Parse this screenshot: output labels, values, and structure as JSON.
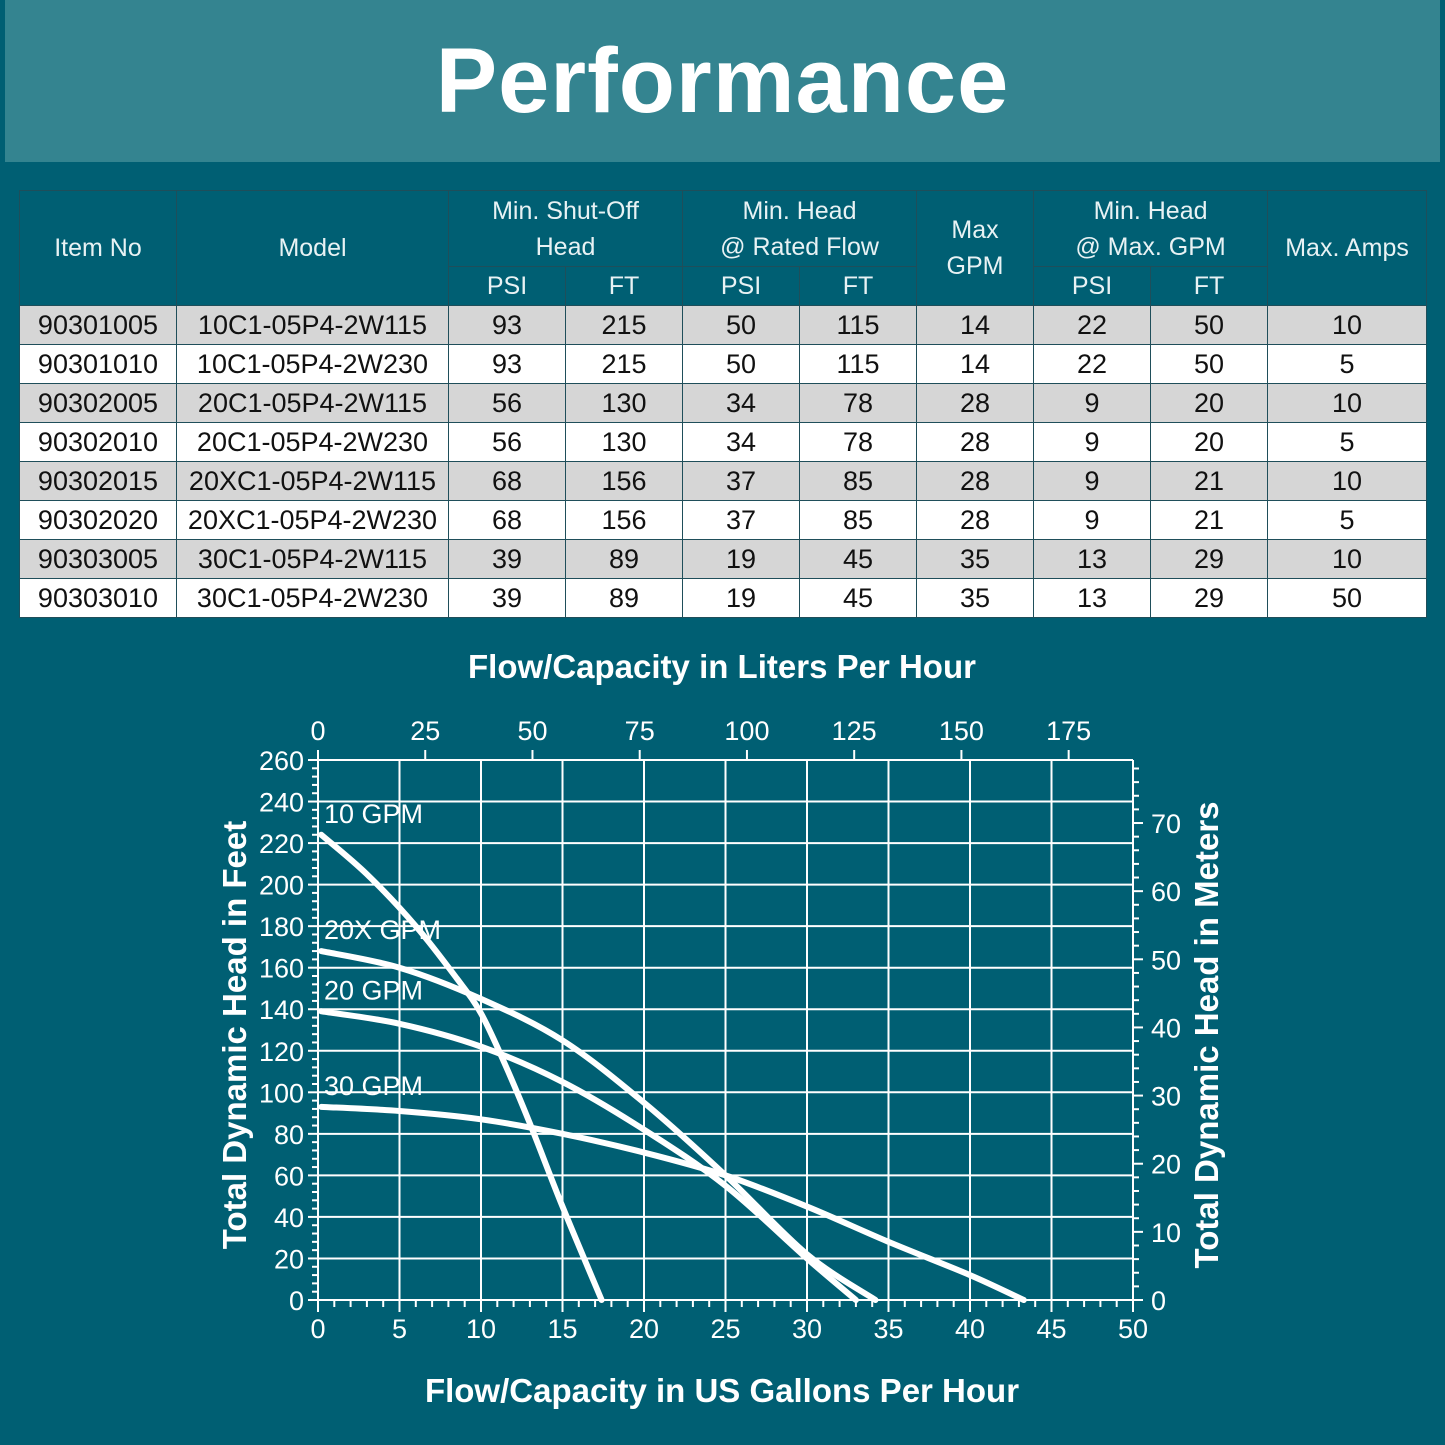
{
  "page": {
    "title": "Performance"
  },
  "table": {
    "headers": {
      "item_no": "Item No",
      "model": "Model",
      "shutoff": "Min. Shut-Off\nHead",
      "rated": "Min. Head\n@ Rated Flow",
      "max_gpm": "Max\nGPM",
      "head_max": "Min. Head\n@ Max. GPM",
      "amps": "Max. Amps",
      "psi": "PSI",
      "ft": "FT"
    },
    "rows": [
      [
        "90301005",
        "10C1-05P4-2W115",
        "93",
        "215",
        "50",
        "115",
        "14",
        "22",
        "50",
        "10"
      ],
      [
        "90301010",
        "10C1-05P4-2W230",
        "93",
        "215",
        "50",
        "115",
        "14",
        "22",
        "50",
        "5"
      ],
      [
        "90302005",
        "20C1-05P4-2W115",
        "56",
        "130",
        "34",
        "78",
        "28",
        "9",
        "20",
        "10"
      ],
      [
        "90302010",
        "20C1-05P4-2W230",
        "56",
        "130",
        "34",
        "78",
        "28",
        "9",
        "20",
        "5"
      ],
      [
        "90302015",
        "20XC1-05P4-2W115",
        "68",
        "156",
        "37",
        "85",
        "28",
        "9",
        "21",
        "10"
      ],
      [
        "90302020",
        "20XC1-05P4-2W230",
        "68",
        "156",
        "37",
        "85",
        "28",
        "9",
        "21",
        "5"
      ],
      [
        "90303005",
        "30C1-05P4-2W115",
        "39",
        "89",
        "19",
        "45",
        "35",
        "13",
        "29",
        "10"
      ],
      [
        "90303010",
        "30C1-05P4-2W230",
        "39",
        "89",
        "19",
        "45",
        "35",
        "13",
        "29",
        "50"
      ]
    ]
  },
  "chart_data": {
    "type": "line",
    "top_axis_title": "Flow/Capacity in Liters Per Hour",
    "xlabel": "Flow/Capacity in US Gallons Per Hour",
    "ylabel": "Total Dynamic Head in Feet",
    "ylabel_right": "Total Dynamic Head in Meters",
    "xlim": [
      0,
      50
    ],
    "ylim": [
      0,
      260
    ],
    "x_ticks": [
      "0",
      "5",
      "10",
      "15",
      "20",
      "25",
      "30",
      "35",
      "40",
      "45",
      "50"
    ],
    "y_ticks": [
      "0",
      "20",
      "40",
      "60",
      "80",
      "100",
      "120",
      "140",
      "160",
      "180",
      "200",
      "220",
      "240",
      "260"
    ],
    "top_ticks": [
      "0",
      "25",
      "50",
      "75",
      "100",
      "125",
      "150",
      "175"
    ],
    "right_ticks": [
      "0",
      "10",
      "20",
      "30",
      "40",
      "50",
      "60",
      "70"
    ],
    "grid": true,
    "series": [
      {
        "name": "10 GPM",
        "x": [
          0.2,
          3,
          6,
          8.5,
          10,
          11.5,
          13,
          15,
          17.4
        ],
        "y": [
          224,
          205,
          180,
          155,
          138,
          113,
          85,
          45,
          0
        ]
      },
      {
        "name": "20X GPM",
        "x": [
          0.2,
          5,
          10,
          15,
          20,
          25,
          30,
          34.2
        ],
        "y": [
          168,
          160,
          145,
          125,
          95,
          60,
          22,
          0
        ]
      },
      {
        "name": "20 GPM",
        "x": [
          0.2,
          5,
          10,
          15,
          20,
          25,
          30,
          33
        ],
        "y": [
          139,
          133,
          122,
          105,
          82,
          55,
          20,
          0
        ]
      },
      {
        "name": "30 GPM",
        "x": [
          0.2,
          5,
          10,
          15,
          20,
          25,
          30,
          35,
          40,
          43.3
        ],
        "y": [
          93,
          91,
          87,
          80,
          71,
          60,
          45,
          28,
          12,
          0
        ]
      }
    ]
  }
}
